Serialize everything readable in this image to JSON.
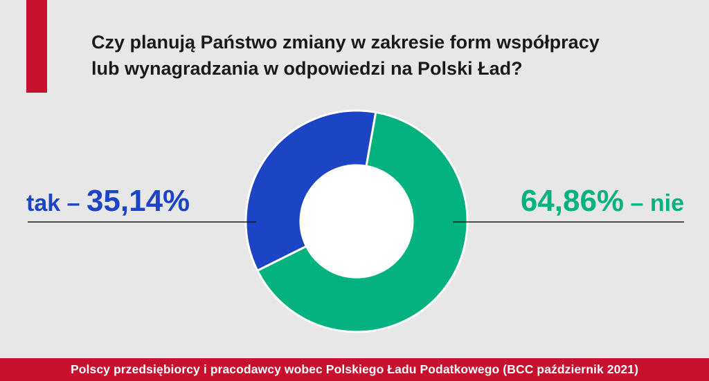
{
  "title": {
    "line1": "Czy planują Państwo zmiany w zakresie form współpracy",
    "line2": "lub wynagradzania w odpowiedzi na Polski Ład?"
  },
  "footer": "Polscy przedsiębiorcy i pracodawcy wobec Polskiego Ładu Podatkowego (BCC październik 2021)",
  "colors": {
    "tak": "#1b45c4",
    "nie": "#04b27f",
    "accent": "#c8102e"
  },
  "chart_data": {
    "type": "pie",
    "slices": [
      {
        "label": "tak",
        "value": 35.14,
        "display": "35,14%",
        "color": "#1b45c4"
      },
      {
        "label": "nie",
        "value": 64.86,
        "display": "64,86%",
        "color": "#04b27f"
      }
    ],
    "annotations": {
      "tak_prefix": "tak – ",
      "nie_suffix": " – nie"
    }
  }
}
